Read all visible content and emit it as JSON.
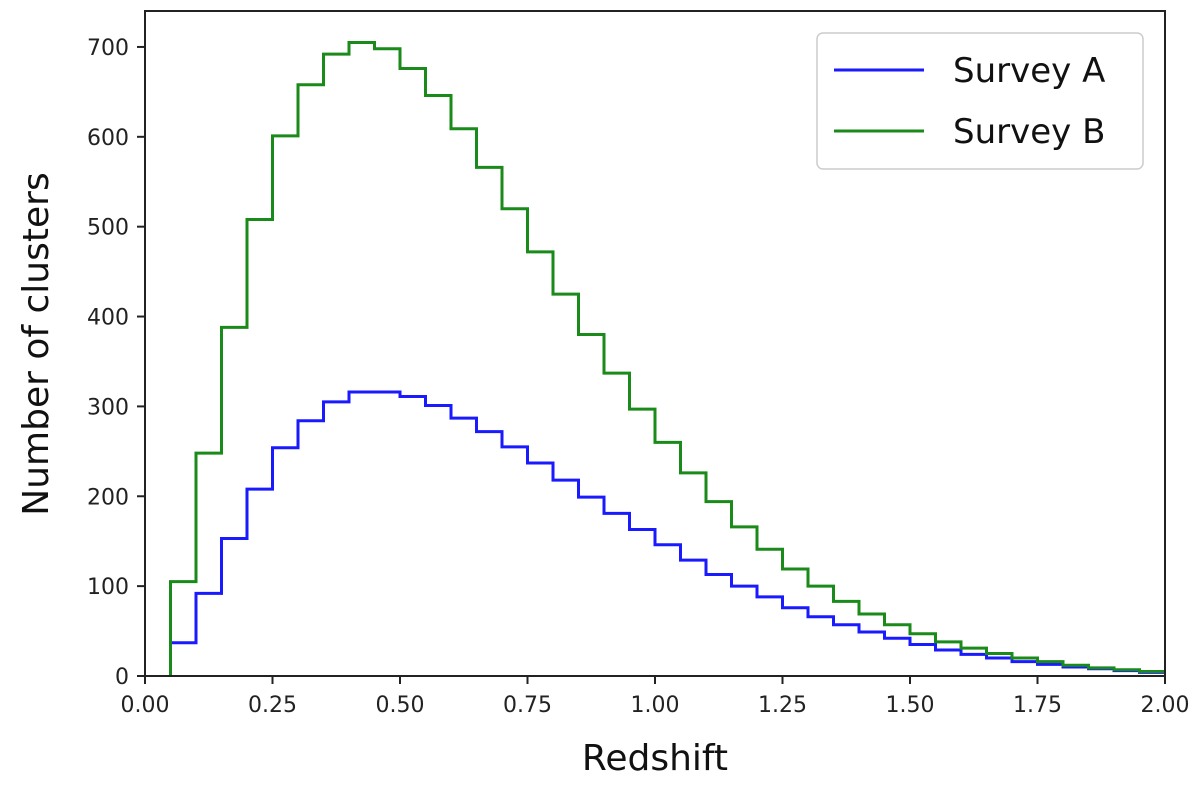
{
  "chart_data": {
    "type": "line",
    "step": true,
    "xlabel": "Redshift",
    "ylabel": "Number of clusters",
    "xlim": [
      0,
      2
    ],
    "ylim": [
      0,
      740
    ],
    "xticks": [
      0.0,
      0.25,
      0.5,
      0.75,
      1.0,
      1.25,
      1.5,
      1.75,
      2.0
    ],
    "xtick_labels": [
      "0.00",
      "0.25",
      "0.50",
      "0.75",
      "1.00",
      "1.25",
      "1.50",
      "1.75",
      "2.00"
    ],
    "yticks": [
      0,
      100,
      200,
      300,
      400,
      500,
      600,
      700
    ],
    "ytick_labels": [
      "0",
      "100",
      "200",
      "300",
      "400",
      "500",
      "600",
      "700"
    ],
    "legend_position": "top-right",
    "bin_edges": [
      0.05,
      0.1,
      0.15,
      0.2,
      0.25,
      0.3,
      0.35,
      0.4,
      0.45,
      0.5,
      0.55,
      0.6,
      0.65,
      0.7,
      0.75,
      0.8,
      0.85,
      0.9,
      0.95,
      1.0,
      1.05,
      1.1,
      1.15,
      1.2,
      1.25,
      1.3,
      1.35,
      1.4,
      1.45,
      1.5,
      1.55,
      1.6,
      1.65,
      1.7,
      1.75,
      1.8,
      1.85,
      1.9,
      1.95,
      2.0
    ],
    "series": [
      {
        "name": "Survey A",
        "color": "#1a1aff",
        "values": [
          37,
          92,
          153,
          208,
          254,
          284,
          305,
          316,
          316,
          311,
          301,
          287,
          272,
          255,
          237,
          218,
          199,
          181,
          163,
          146,
          129,
          113,
          100,
          88,
          76,
          66,
          57,
          49,
          42,
          35,
          29,
          24,
          20,
          16,
          13,
          10,
          8,
          6,
          4
        ]
      },
      {
        "name": "Survey B",
        "color": "#1a8a1a",
        "values": [
          105,
          248,
          388,
          508,
          601,
          658,
          692,
          705,
          698,
          676,
          646,
          609,
          566,
          520,
          472,
          425,
          380,
          337,
          297,
          260,
          226,
          194,
          166,
          141,
          119,
          100,
          83,
          69,
          57,
          47,
          38,
          31,
          25,
          20,
          16,
          12,
          9,
          7,
          5
        ]
      }
    ]
  }
}
